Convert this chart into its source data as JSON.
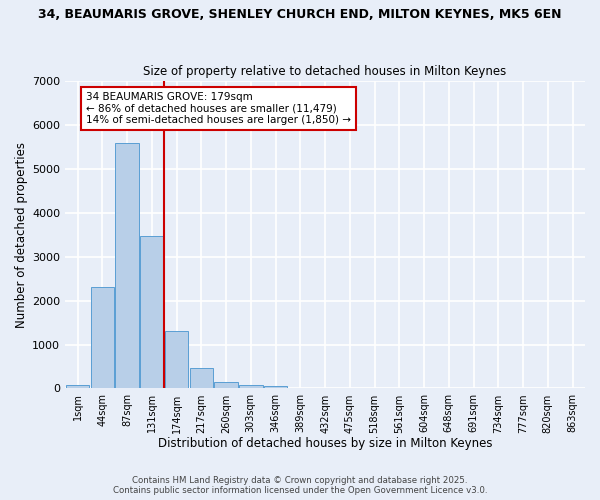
{
  "title_line1": "34, BEAUMARIS GROVE, SHENLEY CHURCH END, MILTON KEYNES, MK5 6EN",
  "title_line2": "Size of property relative to detached houses in Milton Keynes",
  "xlabel": "Distribution of detached houses by size in Milton Keynes",
  "ylabel": "Number of detached properties",
  "categories": [
    "1sqm",
    "44sqm",
    "87sqm",
    "131sqm",
    "174sqm",
    "217sqm",
    "260sqm",
    "303sqm",
    "346sqm",
    "389sqm",
    "432sqm",
    "475sqm",
    "518sqm",
    "561sqm",
    "604sqm",
    "648sqm",
    "691sqm",
    "734sqm",
    "777sqm",
    "820sqm",
    "863sqm"
  ],
  "values": [
    75,
    2300,
    5600,
    3470,
    1320,
    470,
    155,
    70,
    45,
    0,
    0,
    0,
    0,
    0,
    0,
    0,
    0,
    0,
    0,
    0,
    0
  ],
  "bar_color": "#b8cfe8",
  "bar_edge_color": "#5a9fd4",
  "vline_index": 4,
  "vline_color": "#cc0000",
  "annotation_title": "34 BEAUMARIS GROVE: 179sqm",
  "annotation_line1": "← 86% of detached houses are smaller (11,479)",
  "annotation_line2": "14% of semi-detached houses are larger (1,850) →",
  "annotation_box_facecolor": "#ffffff",
  "annotation_box_edgecolor": "#cc0000",
  "ylim": [
    0,
    7000
  ],
  "yticks": [
    0,
    1000,
    2000,
    3000,
    4000,
    5000,
    6000,
    7000
  ],
  "bg_color": "#e8eef8",
  "grid_color": "#ffffff",
  "fig_facecolor": "#e8eef8",
  "footer_line1": "Contains HM Land Registry data © Crown copyright and database right 2025.",
  "footer_line2": "Contains public sector information licensed under the Open Government Licence v3.0."
}
